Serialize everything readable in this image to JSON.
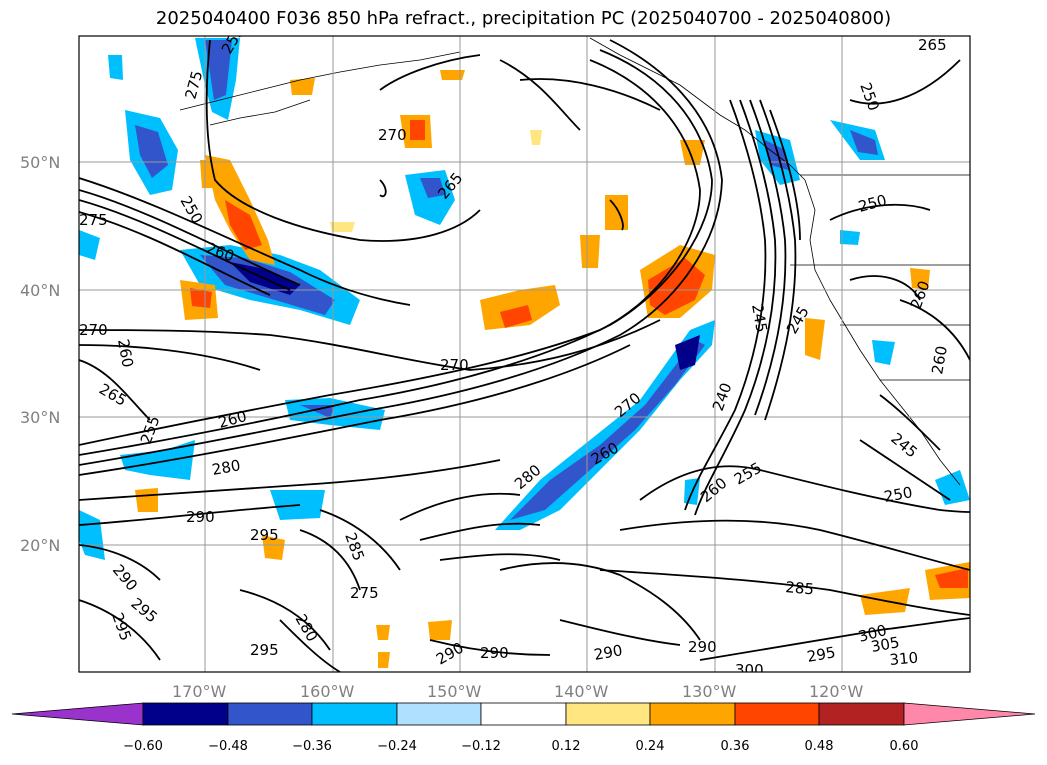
{
  "title": "2025040400 F036 850 hPa refract., precipitation PC (2025040700 - 2025040800)",
  "lat_labels": [
    "50°N",
    "40°N",
    "30°N",
    "20°N"
  ],
  "lon_labels": [
    "170°W",
    "160°W",
    "150°W",
    "140°W",
    "130°W",
    "120°W"
  ],
  "colorbar": {
    "ticks": [
      "−0.60",
      "−0.48",
      "−0.36",
      "−0.24",
      "−0.12",
      "0.12",
      "0.24",
      "0.36",
      "0.48",
      "0.60"
    ],
    "colors": [
      "#9933cc",
      "#00008b",
      "#3355cc",
      "#00bfff",
      "#b0e0ff",
      "#ffffff",
      "#ffe680",
      "#ffa500",
      "#ff4500",
      "#b22222",
      "#ff88aa"
    ]
  },
  "contour_labels": [
    "255",
    "250",
    "275",
    "265",
    "270",
    "265",
    "250",
    "275",
    "260",
    "270",
    "260",
    "265",
    "270",
    "255",
    "260",
    "280",
    "290",
    "295",
    "290",
    "295",
    "295",
    "280",
    "285",
    "275",
    "295",
    "290",
    "290",
    "290",
    "260",
    "245",
    "240",
    "270",
    "260",
    "255",
    "280",
    "285",
    "250",
    "245",
    "250",
    "260",
    "260",
    "245",
    "290",
    "295",
    "300",
    "305",
    "310",
    "300"
  ]
}
